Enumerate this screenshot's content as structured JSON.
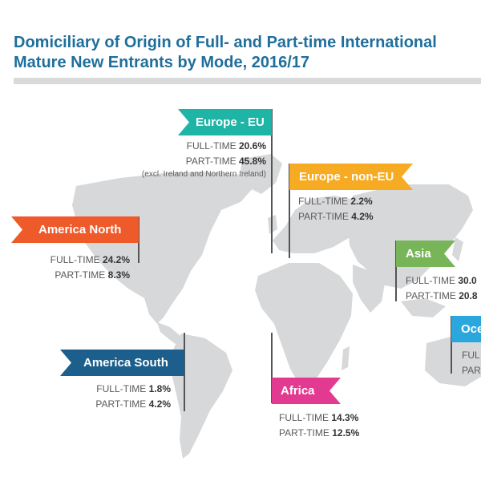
{
  "title": {
    "line1": "Domiciliary of Origin of Full- and Part-time International",
    "line2": "Mature New Entrants by Mode, 2016/17"
  },
  "colors": {
    "title": "#1f6f9c",
    "europe_eu": "#1fb5a6",
    "europe_non_eu": "#f6ab22",
    "america_north": "#ef5a2b",
    "asia": "#78b559",
    "oceania": "#2aa7dc",
    "america_south": "#1d5f8c",
    "africa": "#e33a91",
    "map": "#d7d8da"
  },
  "regions": {
    "europe_eu": {
      "name": "Europe - EU",
      "ft_label": "FULL-TIME",
      "ft": "20.6%",
      "pt_label": "PART-TIME",
      "pt": "45.8%",
      "note": "(excl. Ireland and Northern Ireland)"
    },
    "europe_non_eu": {
      "name": "Europe - non-EU",
      "ft_label": "FULL-TIME",
      "ft": "2.2%",
      "pt_label": "PART-TIME",
      "pt": "4.2%"
    },
    "america_north": {
      "name": "America North",
      "ft_label": "FULL-TIME",
      "ft": "24.2%",
      "pt_label": "PART-TIME",
      "pt": "8.3%"
    },
    "asia": {
      "name": "Asia",
      "ft_label": "FULL-TIME",
      "ft": "30.0",
      "pt_label": "PART-TIME",
      "pt": "20.8"
    },
    "oceania": {
      "name": "Oce",
      "ft_label": "FUL",
      "pt_label": "PAR"
    },
    "america_south": {
      "name": "America South",
      "ft_label": "FULL-TIME",
      "ft": "1.8%",
      "pt_label": "PART-TIME",
      "pt": "4.2%"
    },
    "africa": {
      "name": "Africa",
      "ft_label": "FULL-TIME",
      "ft": "14.3%",
      "pt_label": "PART-TIME",
      "pt": "12.5%"
    }
  }
}
